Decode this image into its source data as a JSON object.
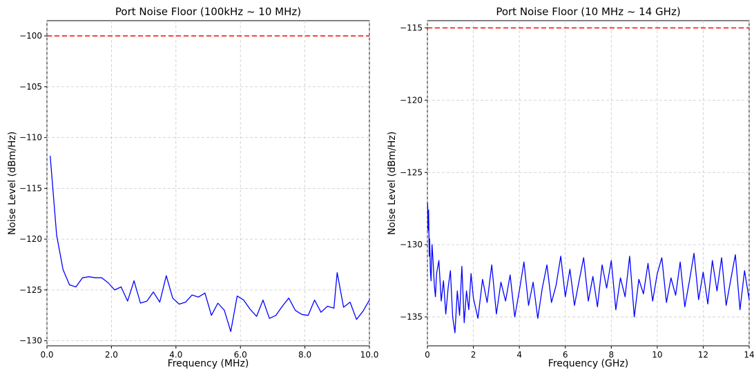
{
  "chart_data": [
    {
      "type": "line",
      "title": "Port Noise Floor (100kHz ~ 10 MHz)",
      "xlabel": "Frequency (MHz)",
      "ylabel": "Noise Level (dBm/Hz)",
      "xlim": [
        0,
        10
      ],
      "ylim": [
        -130.5,
        -98.5
      ],
      "xticks": [
        0,
        2,
        4,
        6,
        8,
        10
      ],
      "xtick_labels": [
        "0.0",
        "2.0",
        "4.0",
        "6.0",
        "8.0",
        "10.0"
      ],
      "yticks": [
        -100,
        -105,
        -110,
        -115,
        -120,
        -125,
        -130
      ],
      "ytick_labels": [
        "-100",
        "-105",
        "-110",
        "-115",
        "-120",
        "-125",
        "-130"
      ],
      "grid": true,
      "threshold": -100,
      "colors": {
        "line": "#0000ff",
        "threshold": "#ff0000",
        "grid": "#c8c8c8"
      },
      "x": [
        0.1,
        0.3,
        0.5,
        0.7,
        0.9,
        1.1,
        1.3,
        1.5,
        1.7,
        1.9,
        2.1,
        2.3,
        2.5,
        2.7,
        2.9,
        3.1,
        3.3,
        3.5,
        3.7,
        3.9,
        4.1,
        4.3,
        4.5,
        4.7,
        4.9,
        5.1,
        5.3,
        5.5,
        5.7,
        5.9,
        6.1,
        6.3,
        6.5,
        6.7,
        6.9,
        7.1,
        7.3,
        7.5,
        7.7,
        7.9,
        8.1,
        8.3,
        8.5,
        8.7,
        8.9,
        9.0,
        9.2,
        9.4,
        9.6,
        9.8,
        10.0
      ],
      "y": [
        -111.8,
        -119.6,
        -123.0,
        -124.5,
        -124.7,
        -123.8,
        -123.7,
        -123.8,
        -123.8,
        -124.3,
        -125.0,
        -124.7,
        -126.1,
        -124.1,
        -126.3,
        -126.1,
        -125.2,
        -126.2,
        -123.6,
        -125.8,
        -126.4,
        -126.2,
        -125.5,
        -125.7,
        -125.3,
        -127.5,
        -126.3,
        -127.0,
        -129.1,
        -125.6,
        -126.0,
        -126.9,
        -127.6,
        -126.0,
        -127.8,
        -127.5,
        -126.6,
        -125.8,
        -127.0,
        -127.4,
        -127.5,
        -126.0,
        -127.2,
        -126.6,
        -126.8,
        -123.3,
        -126.7,
        -126.2,
        -127.9,
        -127.1,
        -126.0
      ]
    },
    {
      "type": "line",
      "title": "Port Noise Floor (10 MHz ~ 14 GHz)",
      "xlabel": "Frequency (GHz)",
      "ylabel": "Noise Level (dBm/Hz)",
      "xlim": [
        0,
        14
      ],
      "ylim": [
        -137,
        -114.5
      ],
      "xticks": [
        0,
        2,
        4,
        6,
        8,
        10,
        12,
        14
      ],
      "xtick_labels": [
        "0",
        "2",
        "4",
        "6",
        "8",
        "10",
        "12",
        "14"
      ],
      "yticks": [
        -115,
        -120,
        -125,
        -130,
        -135
      ],
      "ytick_labels": [
        "-115",
        "-120",
        "-125",
        "-130",
        "-135"
      ],
      "grid": true,
      "threshold": -115,
      "colors": {
        "line": "#0000ff",
        "threshold": "#ff0000",
        "grid": "#c8c8c8"
      },
      "x": [
        0.01,
        0.03,
        0.05,
        0.08,
        0.1,
        0.13,
        0.16,
        0.2,
        0.25,
        0.3,
        0.35,
        0.4,
        0.5,
        0.6,
        0.7,
        0.8,
        0.9,
        1.0,
        1.1,
        1.2,
        1.3,
        1.4,
        1.5,
        1.6,
        1.7,
        1.8,
        1.9,
        2.0,
        2.2,
        2.4,
        2.6,
        2.8,
        3.0,
        3.2,
        3.4,
        3.6,
        3.8,
        4.0,
        4.2,
        4.4,
        4.6,
        4.8,
        5.0,
        5.2,
        5.4,
        5.6,
        5.8,
        6.0,
        6.2,
        6.4,
        6.6,
        6.8,
        7.0,
        7.2,
        7.4,
        7.6,
        7.8,
        8.0,
        8.2,
        8.4,
        8.6,
        8.8,
        9.0,
        9.2,
        9.4,
        9.6,
        9.8,
        10.0,
        10.2,
        10.4,
        10.6,
        10.8,
        11.0,
        11.2,
        11.4,
        11.6,
        11.8,
        12.0,
        12.2,
        12.4,
        12.6,
        12.8,
        13.0,
        13.2,
        13.4,
        13.6,
        13.8,
        14.0
      ],
      "y": [
        -127.1,
        -129.0,
        -127.6,
        -130.8,
        -129.6,
        -131.8,
        -132.5,
        -130.0,
        -131.2,
        -132.8,
        -133.6,
        -132.0,
        -131.1,
        -133.9,
        -132.5,
        -134.8,
        -133.0,
        -131.8,
        -135.0,
        -136.1,
        -133.2,
        -134.9,
        -131.5,
        -135.4,
        -133.2,
        -134.5,
        -132.0,
        -133.7,
        -135.1,
        -132.4,
        -134.0,
        -131.4,
        -134.8,
        -132.6,
        -133.9,
        -132.1,
        -135.0,
        -133.2,
        -131.2,
        -134.2,
        -132.6,
        -135.1,
        -133.0,
        -131.4,
        -134.0,
        -132.8,
        -130.8,
        -133.6,
        -131.7,
        -134.2,
        -132.5,
        -130.9,
        -133.9,
        -132.2,
        -134.3,
        -131.4,
        -133.0,
        -131.1,
        -134.5,
        -132.3,
        -133.6,
        -130.8,
        -135.0,
        -132.4,
        -133.4,
        -131.3,
        -133.9,
        -132.0,
        -130.9,
        -134.0,
        -132.3,
        -133.5,
        -131.2,
        -134.3,
        -132.5,
        -130.6,
        -133.8,
        -131.9,
        -134.1,
        -131.1,
        -133.2,
        -130.9,
        -134.2,
        -132.4,
        -130.7,
        -134.5,
        -131.8,
        -133.8
      ]
    }
  ]
}
